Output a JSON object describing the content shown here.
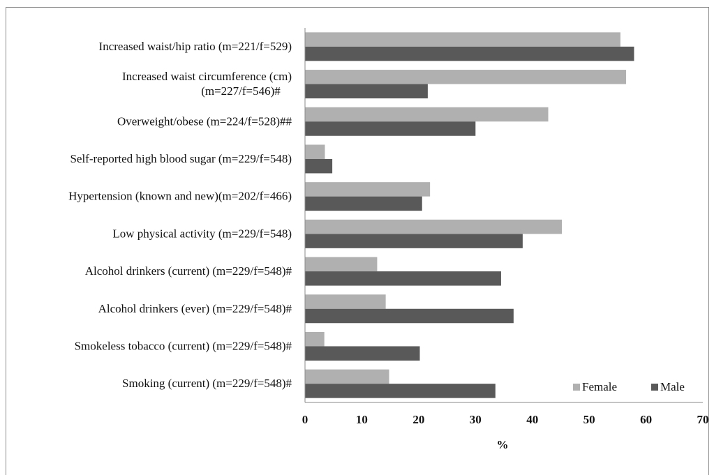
{
  "chart_data": {
    "type": "bar",
    "orientation": "horizontal",
    "categories": [
      "Increased waist/hip ratio (m=221/f=529)",
      "Increased waist circumference (cm)|(m=227/f=546)#",
      "Overweight/obese (m=224/f=528)##",
      "Self-reported high blood sugar (m=229/f=548)",
      "Hypertension (known and new)(m=202/f=466)",
      "Low physical activity (m=229/f=548)",
      "Alcohol drinkers (current) (m=229/f=548)#",
      "Alcohol drinkers (ever) (m=229/f=548)#",
      "Smokeless tobacco (current) (m=229/f=548)#",
      "Smoking (current) (m=229/f=548)#"
    ],
    "series": [
      {
        "name": "Female",
        "color": "#b0b0b0",
        "values": [
          55.5,
          56.5,
          42.8,
          3.5,
          22.0,
          45.2,
          12.7,
          14.2,
          3.4,
          14.8
        ]
      },
      {
        "name": "Male",
        "color": "#595959",
        "values": [
          57.9,
          21.6,
          30.0,
          4.8,
          20.6,
          38.3,
          34.5,
          36.7,
          20.2,
          33.5
        ]
      }
    ],
    "xlabel": "%",
    "xlim": [
      0,
      70
    ],
    "xticks": [
      0,
      10,
      20,
      30,
      40,
      50,
      60,
      70
    ],
    "grid": false,
    "legend_position": "bottom-right"
  }
}
